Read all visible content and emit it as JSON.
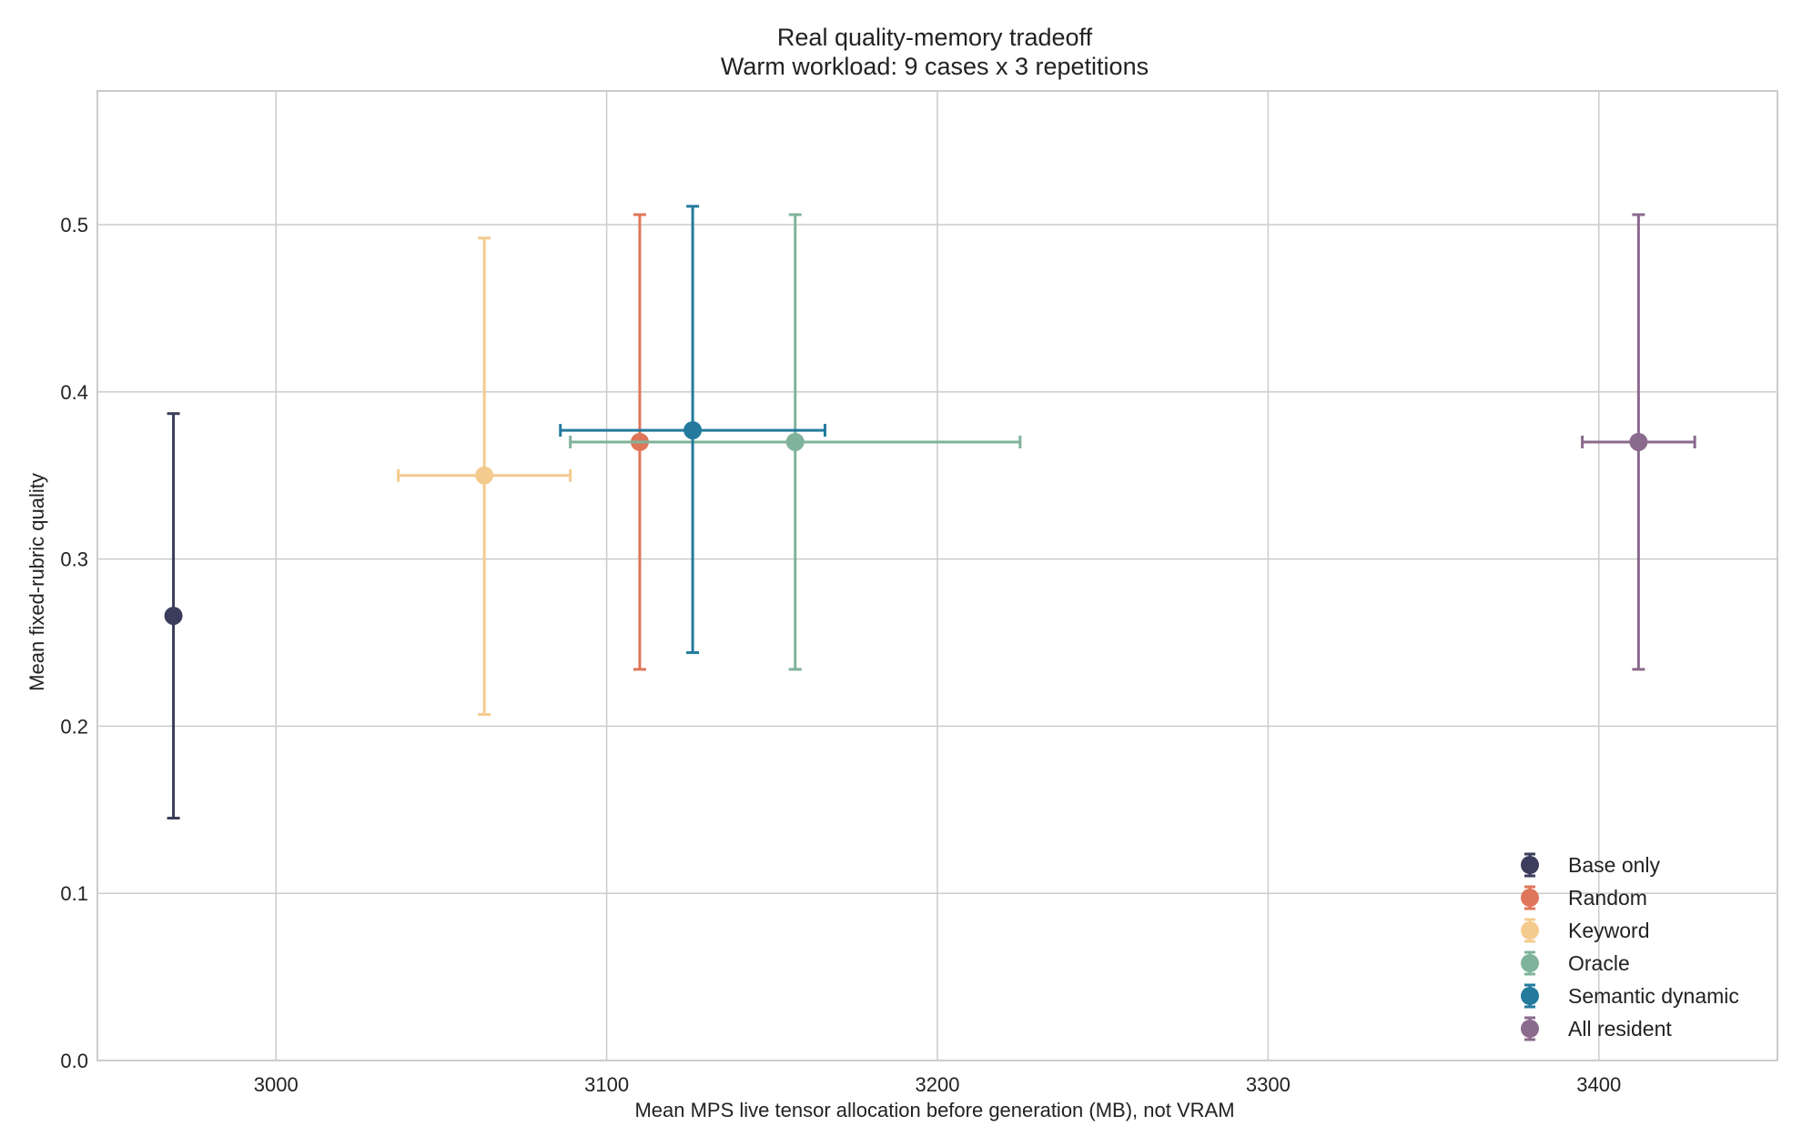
{
  "chart_data": {
    "type": "scatter",
    "title": "Real quality-memory tradeoff",
    "subtitle": "Warm workload: 9 cases x 3 repetitions",
    "xlabel": "Mean MPS live tensor allocation before generation (MB), not VRAM",
    "ylabel": "Mean fixed-rubric quality",
    "xlim": [
      2946,
      3454
    ],
    "ylim": [
      0.0,
      0.58
    ],
    "x_ticks": [
      3000,
      3100,
      3200,
      3300,
      3400
    ],
    "y_ticks": [
      0.0,
      0.1,
      0.2,
      0.3,
      0.4,
      0.5
    ],
    "x_tick_labels": [
      "3000",
      "3100",
      "3200",
      "3300",
      "3400"
    ],
    "y_tick_labels": [
      "0.0",
      "0.1",
      "0.2",
      "0.3",
      "0.4",
      "0.5"
    ],
    "grid": true,
    "legend_position": "bottom-right",
    "series": [
      {
        "name": "Base only",
        "color": "#3c3d5c",
        "x": 2969,
        "y": 0.266,
        "x_err": [
          0,
          0
        ],
        "y_err": [
          0.145,
          0.387
        ]
      },
      {
        "name": "Random",
        "color": "#e07659",
        "x": 3110,
        "y": 0.37,
        "x_err": [
          0,
          0
        ],
        "y_err": [
          0.234,
          0.506
        ]
      },
      {
        "name": "Keyword",
        "color": "#f4cb8e",
        "x": 3063,
        "y": 0.35,
        "x_err": [
          3037,
          3089
        ],
        "y_err": [
          0.207,
          0.492
        ]
      },
      {
        "name": "Oracle",
        "color": "#7fb39b",
        "x": 3157,
        "y": 0.37,
        "x_err": [
          3089,
          3225
        ],
        "y_err": [
          0.234,
          0.506
        ]
      },
      {
        "name": "Semantic dynamic",
        "color": "#237a9d",
        "x": 3126,
        "y": 0.377,
        "x_err": [
          3086,
          3166
        ],
        "y_err": [
          0.244,
          0.511
        ]
      },
      {
        "name": "All resident",
        "color": "#8a6a8d",
        "x": 3412,
        "y": 0.37,
        "x_err": [
          3395,
          3429
        ],
        "y_err": [
          0.234,
          0.506
        ]
      }
    ]
  }
}
